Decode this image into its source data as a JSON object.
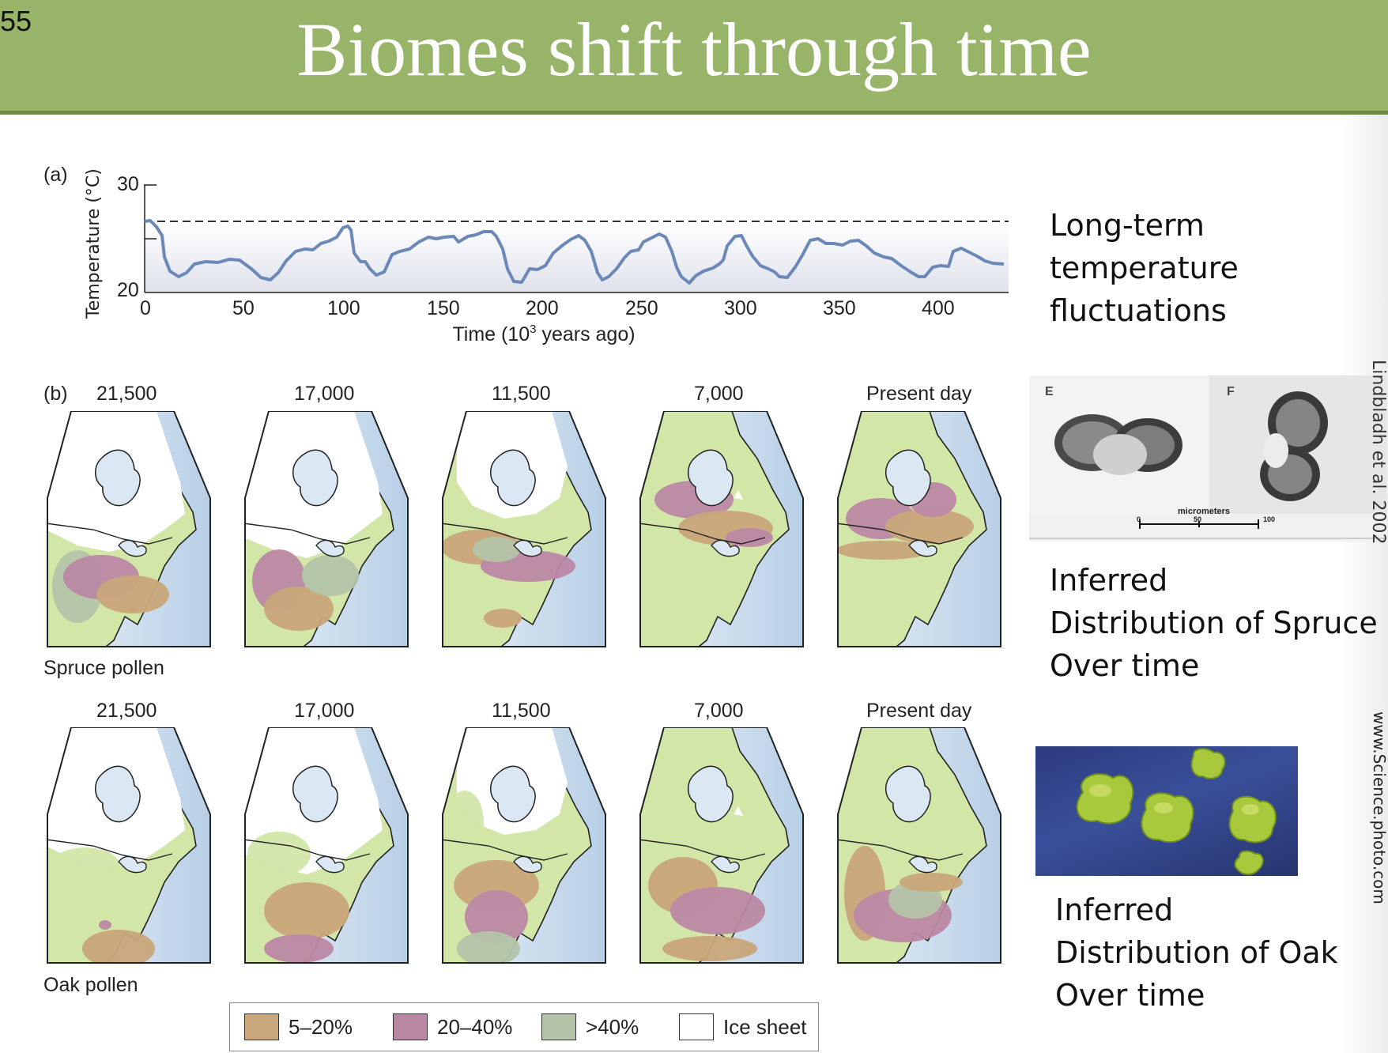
{
  "slide": {
    "number": "55",
    "title": "Biomes shift through time"
  },
  "panel_a": {
    "label": "(a)",
    "ylabel": "Temperature (°C)",
    "xlabel_pre": "Time (10",
    "xlabel_sup": "3",
    "xlabel_post": " years ago)",
    "yticks": [
      "30",
      "20"
    ],
    "xticks": [
      "0",
      "50",
      "100",
      "150",
      "200",
      "250",
      "300",
      "350",
      "400"
    ]
  },
  "panel_b": {
    "label": "(b)",
    "time_labels": [
      "21,500",
      "17,000",
      "11,500",
      "7,000",
      "Present day"
    ],
    "spruce_label": "Spruce pollen",
    "oak_label": "Oak pollen"
  },
  "legend": [
    {
      "label": "5–20%",
      "color": "#c9a77a"
    },
    {
      "label": "20–40%",
      "color": "#bb88a4"
    },
    {
      "label": ">40%",
      "color": "#b4c4a8"
    },
    {
      "label": "Ice sheet",
      "color": "#ffffff"
    }
  ],
  "right_text": {
    "temperature": "Long-term temperature\nfluctuations",
    "spruce": "Inferred\nDistribution of Spruce\nOver time",
    "oak": "Inferred\nDistribution of Oak\nOver time"
  },
  "micrograph": {
    "panel_e": "E",
    "panel_f": "F",
    "scale_label": "micrometers",
    "scale_ticks": [
      "0",
      "50",
      "100"
    ]
  },
  "credits": {
    "top": "Lindbladh et al. 2002",
    "bottom": "www.Science.photo.com"
  },
  "colors": {
    "header": "#98b468",
    "curve": "#6b88b8",
    "land": "#d2e6a8",
    "ocean": "#c4d8ea"
  }
}
